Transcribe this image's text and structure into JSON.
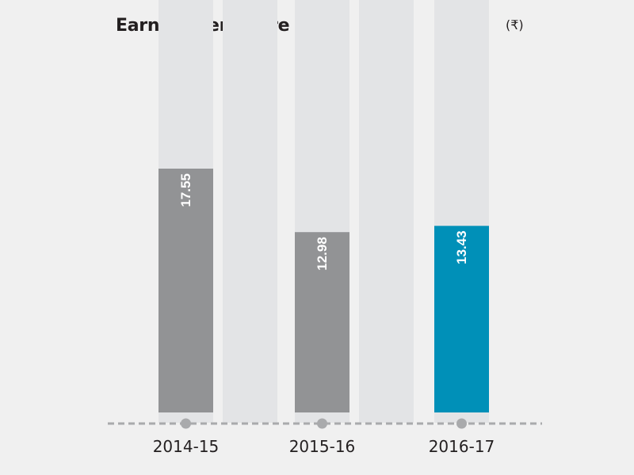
{
  "chart_data": {
    "type": "bar",
    "title": "Earning per Share",
    "unit": "(₹)",
    "categories": [
      "2014-15",
      "2015-16",
      "2016-17"
    ],
    "values": [
      17.55,
      12.98,
      13.43
    ],
    "value_labels": [
      "17.55",
      "12.98",
      "13.43"
    ],
    "xlabel": "",
    "ylabel": "",
    "ylim": [
      0,
      27.5
    ],
    "grid": false,
    "legend": "none",
    "highlight_index": 2
  },
  "colors": {
    "background": "#f0f0f0",
    "track": "#e3e4e6",
    "bar": "#929395",
    "highlight": "#0090b8",
    "label": "#ffffff",
    "axis": "#a9aaac",
    "marker": "#a9aaac",
    "text": "#231f20"
  }
}
